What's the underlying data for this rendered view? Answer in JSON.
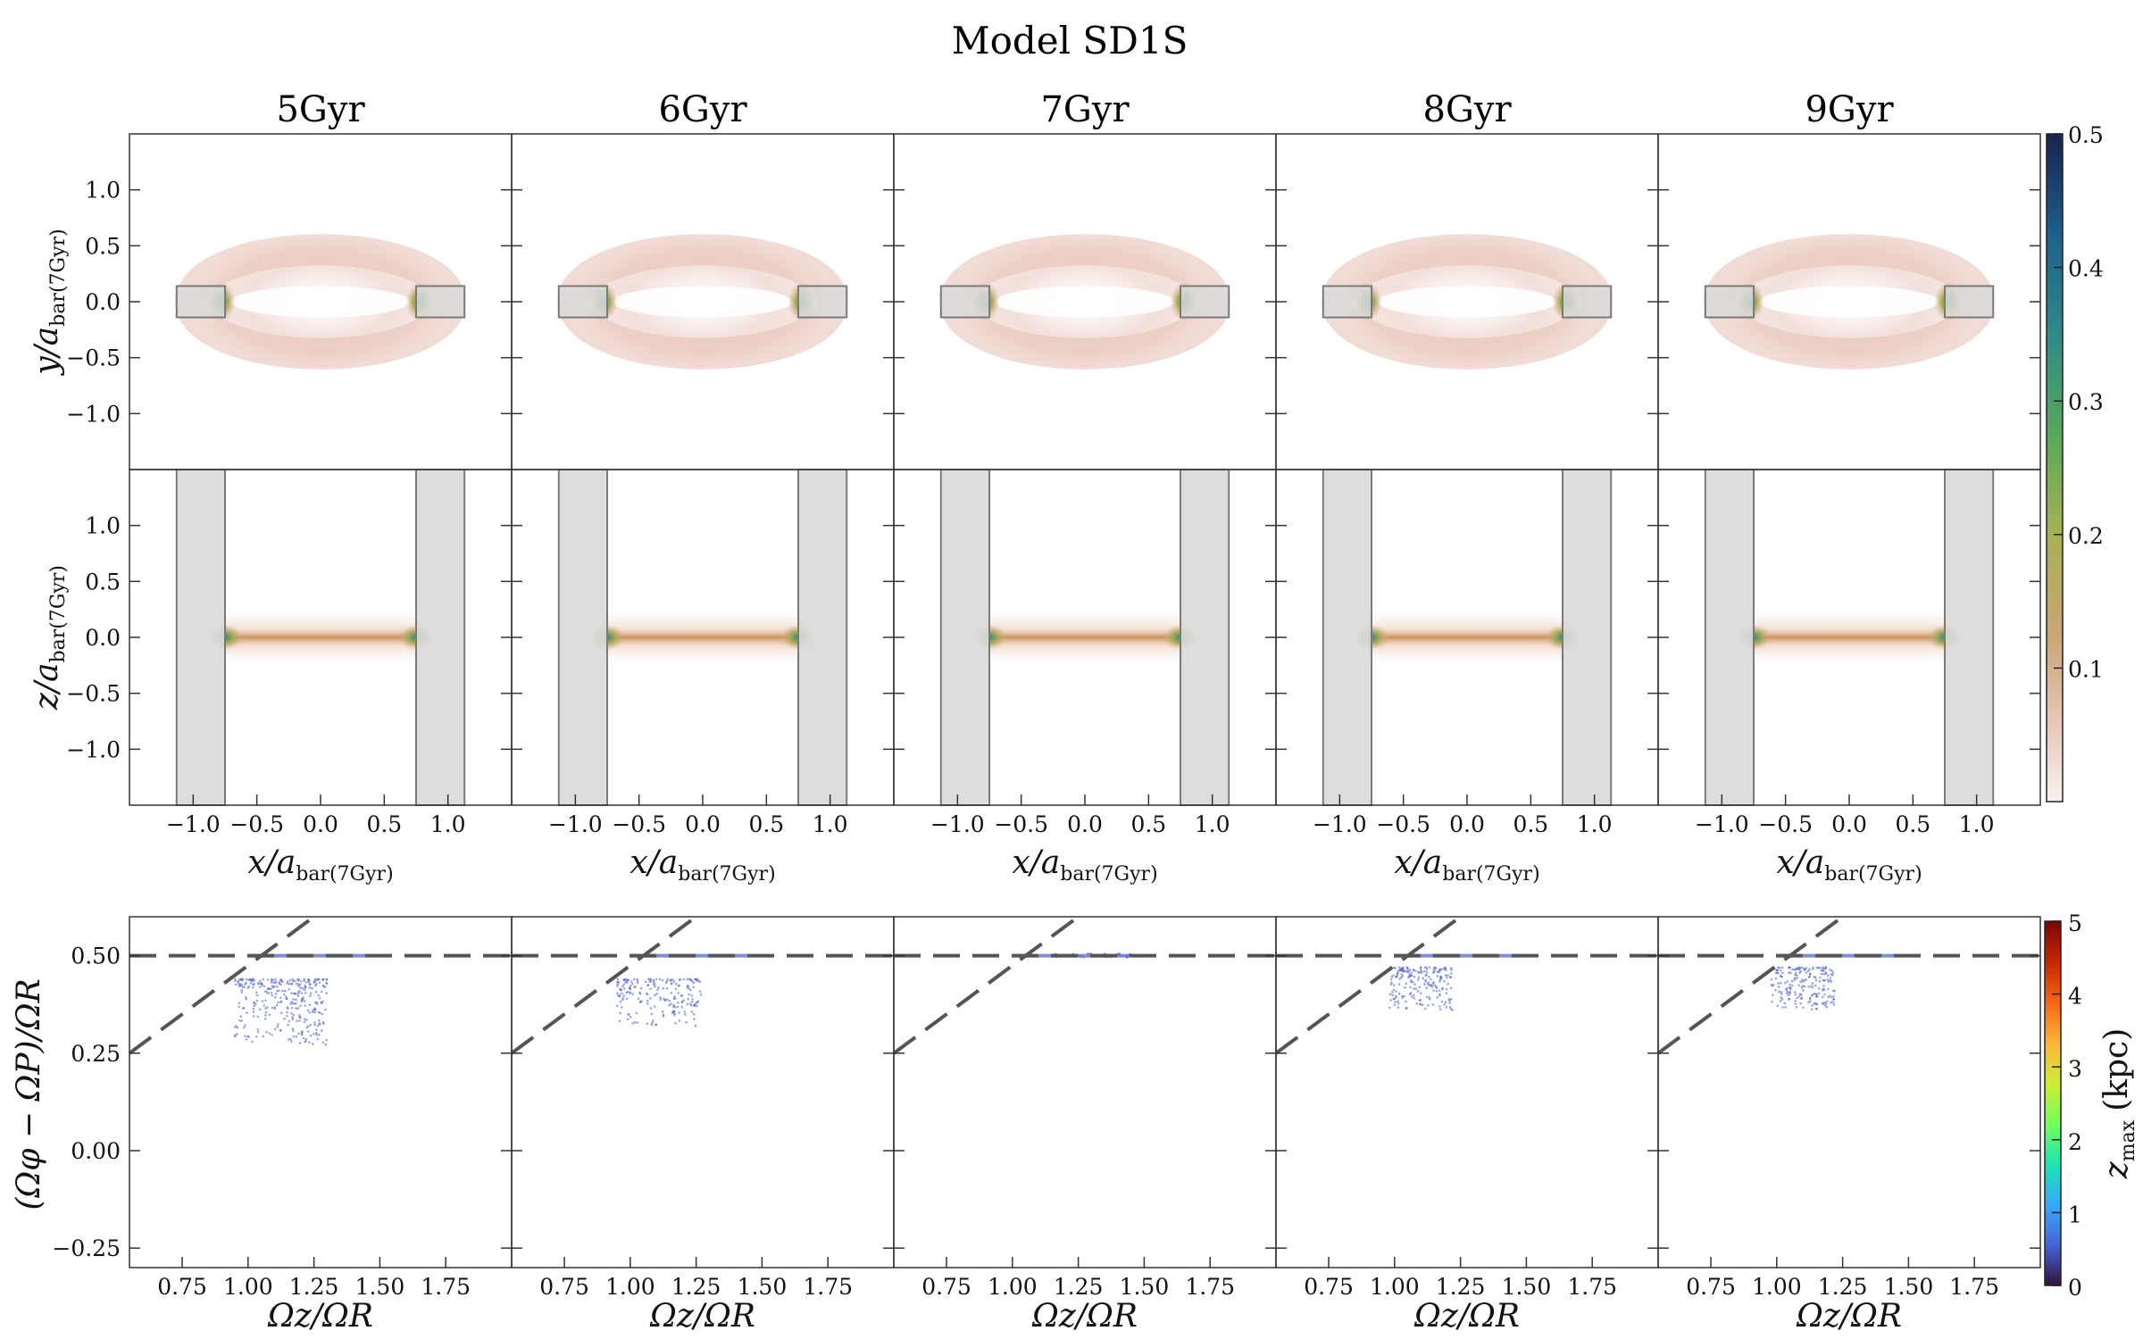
{
  "figure_title": "Model SD1S",
  "panel_columns": [
    "5Gyr",
    "6Gyr",
    "7Gyr",
    "8Gyr",
    "9Gyr"
  ],
  "labels": {
    "row1_ylabel_main": "y/a",
    "row2_ylabel_main": "z/a",
    "xlabel_main": "x/a",
    "bar_sub": "bar(7Gyr)",
    "row3_ylabel": "(Ωφ − ΩP)/ΩR",
    "row3_xlabel": "Ωz/ΩR",
    "cbar2_label_main": "z",
    "cbar2_label_sub": "max",
    "cbar2_label_unit": "(kpc)"
  },
  "colors": {
    "density_low": "#f4e1da",
    "density_mid": "#c8a060",
    "density_high": "#2e7d7a",
    "mask_fill": "#d9d9d9",
    "mask_edge": "#7a7a7a",
    "dash_line": "#555555",
    "scatter_point": "#4a5fc8"
  },
  "chart_data": [
    {
      "type": "heatmap",
      "row": "face-on density",
      "ylabel": "y/a_bar(7Gyr)",
      "xlim": [
        -1.5,
        1.5
      ],
      "ylim": [
        -1.5,
        1.5
      ],
      "yticks": [
        "1.0",
        "0.5",
        "0.0",
        "−0.5",
        "−1.0"
      ],
      "ytick_values": [
        1.0,
        0.5,
        0.0,
        -0.5,
        -1.0
      ],
      "shaded_regions": [
        {
          "x": [
            -1.13,
            -0.75
          ],
          "y": [
            -0.14,
            0.14
          ]
        },
        {
          "x": [
            0.75,
            1.13
          ],
          "y": [
            -0.14,
            0.14
          ]
        }
      ],
      "ring": {
        "a_outer": 1.05,
        "b_outer": 0.62,
        "a_inner": 0.7,
        "b_inner": 0.14
      },
      "panels": [
        "5Gyr",
        "6Gyr",
        "7Gyr",
        "8Gyr",
        "9Gyr"
      ]
    },
    {
      "type": "heatmap",
      "row": "edge-on density",
      "ylabel": "z/a_bar(7Gyr)",
      "xlabel": "x/a_bar(7Gyr)",
      "xlim": [
        -1.5,
        1.5
      ],
      "ylim": [
        -1.5,
        1.5
      ],
      "xticks": [
        "−1.0",
        "−0.5",
        "0.0",
        "0.5",
        "1.0"
      ],
      "xtick_values": [
        -1.0,
        -0.5,
        0.0,
        0.5,
        1.0
      ],
      "yticks": [
        "1.0",
        "0.5",
        "0.0",
        "−0.5",
        "−1.0"
      ],
      "ytick_values": [
        1.0,
        0.5,
        0.0,
        -0.5,
        -1.0
      ],
      "shaded_regions": [
        {
          "x": [
            -1.13,
            -0.75
          ],
          "y": [
            -1.5,
            1.5
          ]
        },
        {
          "x": [
            0.75,
            1.13
          ],
          "y": [
            -1.5,
            1.5
          ]
        }
      ],
      "panels": [
        "5Gyr",
        "6Gyr",
        "7Gyr",
        "8Gyr",
        "9Gyr"
      ]
    },
    {
      "type": "scatter",
      "row": "frequency ratios",
      "xlabel": "Ωz/ΩR",
      "ylabel": "(Ωφ − ΩP)/ΩR",
      "xlim": [
        0.55,
        2.0
      ],
      "ylim": [
        -0.3,
        0.6
      ],
      "xticks": [
        "0.75",
        "1.00",
        "1.25",
        "1.50",
        "1.75"
      ],
      "xtick_values": [
        0.75,
        1.0,
        1.25,
        1.5,
        1.75
      ],
      "yticks": [
        "0.50",
        "0.25",
        "0.00",
        "−0.25"
      ],
      "ytick_values": [
        0.5,
        0.25,
        0.0,
        -0.25
      ],
      "reference_lines": [
        {
          "style": "dashed",
          "kind": "horizontal",
          "y": 0.5
        },
        {
          "style": "dashed",
          "kind": "diagonal",
          "points": [
            [
              0.55,
              0.25
            ],
            [
              1.25,
              0.6
            ]
          ]
        }
      ],
      "point_clouds": [
        {
          "panel": "5Gyr",
          "x_range": [
            0.95,
            1.3
          ],
          "y_range": [
            0.27,
            0.44
          ],
          "count": 320
        },
        {
          "panel": "6Gyr",
          "x_range": [
            0.95,
            1.27
          ],
          "y_range": [
            0.32,
            0.44
          ],
          "count": 200
        },
        {
          "panel": "7Gyr",
          "x_range": [
            1.15,
            1.45
          ],
          "y_range": [
            0.495,
            0.505
          ],
          "count": 40
        },
        {
          "panel": "8Gyr",
          "x_range": [
            0.98,
            1.22
          ],
          "y_range": [
            0.36,
            0.47
          ],
          "count": 200
        },
        {
          "panel": "9Gyr",
          "x_range": [
            0.98,
            1.22
          ],
          "y_range": [
            0.36,
            0.47
          ],
          "count": 200
        }
      ]
    }
  ],
  "colorbars": [
    {
      "name": "density",
      "range": [
        0.0,
        0.5
      ],
      "ticks": [
        "0.5",
        "0.4",
        "0.3",
        "0.2",
        "0.1"
      ],
      "tick_values": [
        0.5,
        0.4,
        0.3,
        0.2,
        0.1
      ],
      "colors": [
        "#f7f2f2",
        "#e6c6b6",
        "#c9a575",
        "#a7b154",
        "#57a85a",
        "#2f8a88",
        "#1e5f8c",
        "#17234f"
      ]
    },
    {
      "name": "zmax",
      "range": [
        0,
        5
      ],
      "ticks": [
        "5",
        "4",
        "3",
        "2",
        "1",
        "0"
      ],
      "tick_values": [
        5,
        4,
        3,
        2,
        1,
        0
      ],
      "colors": [
        "#30123b",
        "#4662d7",
        "#36aaf9",
        "#1ae4b6",
        "#72fe5e",
        "#c8ef34",
        "#faba39",
        "#f66b19",
        "#ca2a04",
        "#7a0403"
      ]
    }
  ]
}
